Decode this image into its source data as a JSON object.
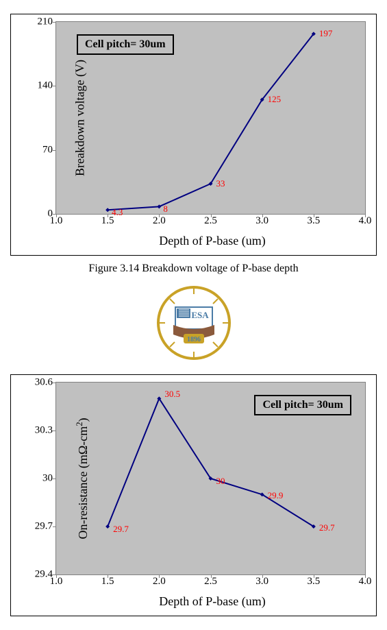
{
  "chart1": {
    "type": "line",
    "panel_border_color": "#000000",
    "plot_bg": "#c0c0c0",
    "plot_border_color": "#808080",
    "line_color": "#000080",
    "marker_color": "#000080",
    "marker_style": "diamond",
    "marker_size": 6,
    "line_width": 2,
    "label_color": "#ff0000",
    "label_fontsize": 13,
    "axis_fontsize": 15,
    "title_fontsize": 18,
    "x": [
      1.5,
      2.0,
      2.5,
      3.0,
      3.5
    ],
    "y": [
      4.3,
      8,
      33,
      125,
      197
    ],
    "labels": [
      "4.3",
      "8",
      "33",
      "125",
      "197"
    ],
    "xlabel": "Depth of P-base (um)",
    "ylabel": "Breakdown voltage (V)",
    "xlim": [
      1.0,
      4.0
    ],
    "ylim": [
      0,
      210
    ],
    "xticks": [
      "1.0",
      "1.5",
      "2.0",
      "2.5",
      "3.0",
      "3.5",
      "4.0"
    ],
    "yticks": [
      "0",
      "70",
      "140",
      "210"
    ],
    "legend": "Cell pitch= 30um",
    "legend_pos": "top-left"
  },
  "caption1": "Figure 3.14 Breakdown voltage of P-base depth",
  "chart2": {
    "type": "line",
    "panel_border_color": "#000000",
    "plot_bg": "#c0c0c0",
    "plot_border_color": "#808080",
    "line_color": "#000080",
    "marker_color": "#000080",
    "marker_style": "diamond",
    "marker_size": 6,
    "line_width": 2,
    "label_color": "#ff0000",
    "label_fontsize": 13,
    "axis_fontsize": 15,
    "title_fontsize": 18,
    "x": [
      1.5,
      2.0,
      2.5,
      3.0,
      3.5
    ],
    "y": [
      29.7,
      30.5,
      30,
      29.9,
      29.7
    ],
    "labels": [
      "29.7",
      "30.5",
      "30",
      "29.9",
      "29.7"
    ],
    "xlabel": "Depth of P-base (um)",
    "ylabel_html": "On-resistance (mΩ-cm<sup>2</sup>)",
    "ylabel": "On-resistance (mΩ-cm2)",
    "xlim": [
      1.0,
      4.0
    ],
    "ylim": [
      29.4,
      30.6
    ],
    "xticks": [
      "1.0",
      "1.5",
      "2.0",
      "2.5",
      "3.0",
      "3.5",
      "4.0"
    ],
    "yticks": [
      "29.4",
      "29.7",
      "30",
      "30.3",
      "30.6"
    ],
    "legend": "Cell pitch= 30um",
    "legend_pos": "top-right"
  },
  "logo": {
    "text_top": "ESA",
    "text_year": "1896",
    "colors": {
      "gold": "#c9a227",
      "blue": "#4a7ba6",
      "brick": "#8b5a3c",
      "white": "#ffffff"
    }
  }
}
